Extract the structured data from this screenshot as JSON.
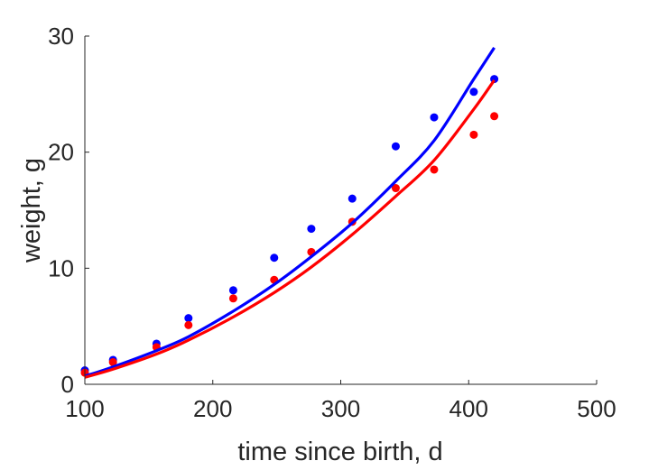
{
  "chart_data": {
    "type": "scatter",
    "title": "",
    "xlabel": "time since birth, d",
    "ylabel": "weight, g",
    "xlim": [
      100,
      500
    ],
    "ylim": [
      0,
      30
    ],
    "xticks": [
      100,
      200,
      300,
      400,
      500
    ],
    "yticks": [
      0,
      10,
      20,
      30
    ],
    "xtick_labels": [
      "100",
      "200",
      "300",
      "400",
      "500"
    ],
    "ytick_labels": [
      "0",
      "10",
      "20",
      "30"
    ],
    "grid": false,
    "series": [
      {
        "kind": "points",
        "color": "#0000ff",
        "x": [
          100,
          122,
          156,
          181,
          216,
          248,
          277,
          309,
          343,
          373,
          404,
          420
        ],
        "y": [
          1.2,
          2.1,
          3.5,
          5.7,
          8.1,
          10.9,
          13.4,
          16.0,
          20.5,
          23.0,
          25.2,
          26.3
        ]
      },
      {
        "kind": "points",
        "color": "#ff0000",
        "x": [
          100,
          122,
          156,
          181,
          216,
          248,
          277,
          309,
          343,
          373,
          404,
          420
        ],
        "y": [
          1.0,
          1.9,
          3.2,
          5.1,
          7.4,
          9.0,
          11.4,
          14.0,
          16.9,
          18.5,
          21.5,
          23.1
        ]
      },
      {
        "kind": "line",
        "color": "#0000ff",
        "x": [
          100,
          122,
          156,
          181,
          216,
          248,
          277,
          309,
          343,
          373,
          404,
          420
        ],
        "y": [
          0.7,
          1.5,
          2.9,
          4.1,
          6.3,
          8.6,
          11.0,
          13.9,
          17.5,
          21.0,
          26.3,
          29.0
        ]
      },
      {
        "kind": "line",
        "color": "#ff0000",
        "x": [
          100,
          122,
          156,
          181,
          216,
          248,
          277,
          309,
          343,
          373,
          404,
          420
        ],
        "y": [
          0.6,
          1.3,
          2.6,
          3.8,
          5.8,
          7.9,
          10.1,
          12.9,
          16.2,
          19.3,
          23.7,
          26.2
        ]
      }
    ]
  }
}
